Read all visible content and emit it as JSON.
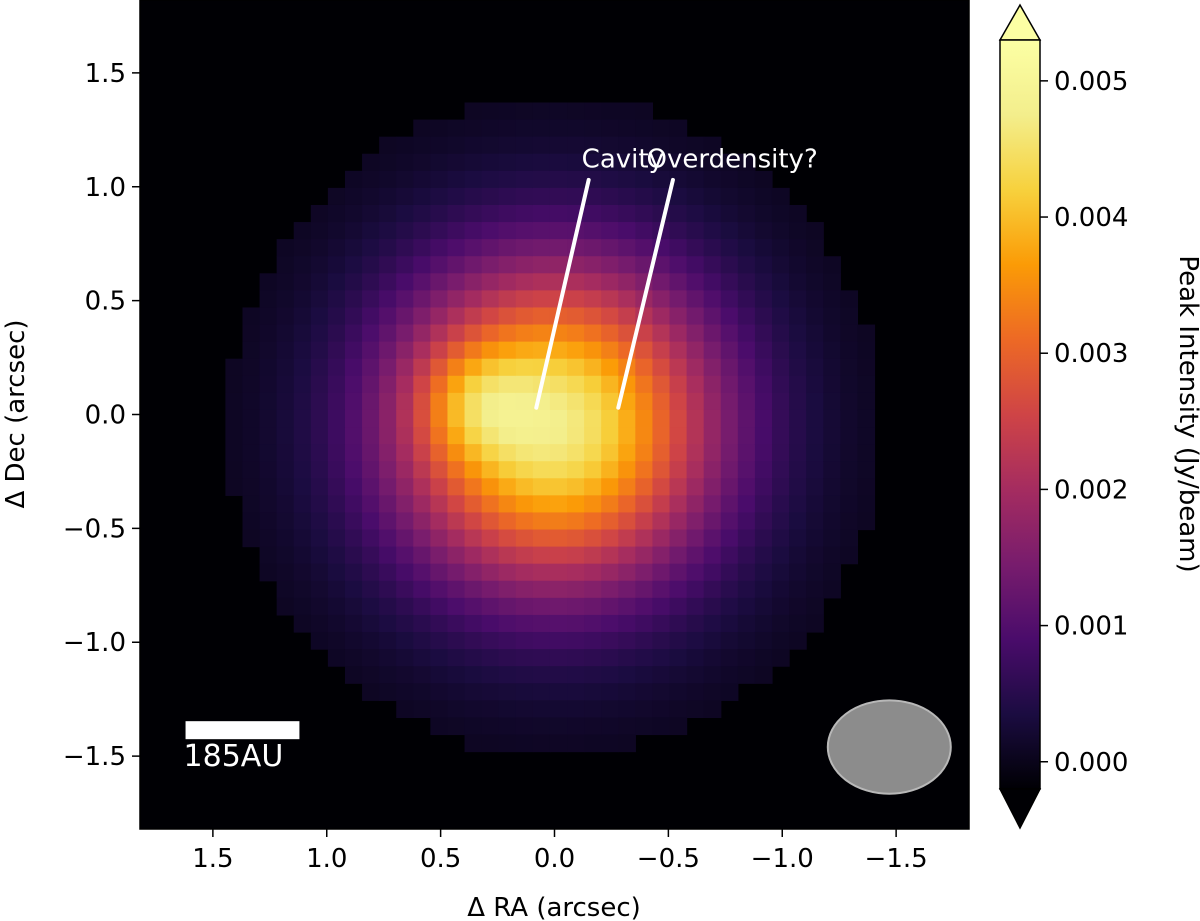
{
  "chart_data": {
    "type": "heatmap",
    "title": "",
    "xlabel": "Δ RA (arcsec)",
    "ylabel": "Δ Dec (arcsec)",
    "xlim": [
      1.82,
      -1.82
    ],
    "ylim": [
      -1.82,
      1.82
    ],
    "x_ticks": [
      -1.5,
      -1.0,
      -0.5,
      0.0,
      0.5,
      1.0,
      1.5
    ],
    "x_tick_labels": [
      "−1.5",
      "−1.0",
      "−0.5",
      "0.0",
      "0.5",
      "1.0",
      "1.5"
    ],
    "y_ticks": [
      -1.5,
      -1.0,
      -0.5,
      0.0,
      0.5,
      1.0,
      1.5
    ],
    "y_tick_labels": [
      "−1.5",
      "−1.0",
      "−0.5",
      "0.0",
      "0.5",
      "1.0",
      "1.5"
    ],
    "colormap": "inferno",
    "colorbar": {
      "label": "Peak Intensity (Jy/beam)",
      "vmin": -0.0002,
      "vmax": 0.0053,
      "extend": "both",
      "ticks": [
        0.0,
        0.001,
        0.002,
        0.003,
        0.004,
        0.005
      ],
      "tick_labels": [
        "0.000",
        "0.001",
        "0.002",
        "0.003",
        "0.004",
        "0.005"
      ]
    },
    "emission": {
      "disk_center": [
        0.0,
        -0.05
      ],
      "disk_sigma_arcsec": 0.5,
      "disk_peak": 0.0047,
      "overdensity_center": [
        0.35,
        0.05
      ],
      "overdensity_peak": 0.0009,
      "pixel_size_arcsec": 0.075
    },
    "annotations": [
      {
        "text": "Cavity",
        "text_pos": [
          -0.3,
          1.12
        ],
        "line_from": [
          -0.15,
          1.03
        ],
        "line_to": [
          0.08,
          0.03
        ]
      },
      {
        "text": "Overdensity?",
        "text_pos": [
          -0.78,
          1.12
        ],
        "line_from": [
          -0.52,
          1.03
        ],
        "line_to": [
          -0.28,
          0.03
        ]
      }
    ],
    "scale_bar": {
      "label": "185AU",
      "length_arcsec": 0.5,
      "x_start": 1.62,
      "y": -1.43
    },
    "beam": {
      "center": [
        -1.47,
        -1.46
      ],
      "major_arcsec": 0.54,
      "minor_arcsec": 0.41,
      "color": "#8c8c8c"
    }
  }
}
